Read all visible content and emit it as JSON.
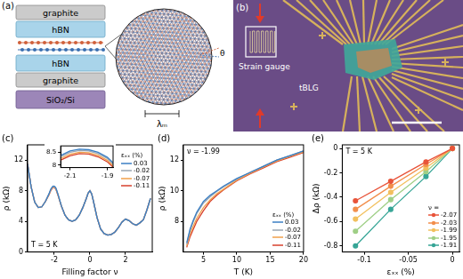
{
  "diagram_a": {
    "panel": "(a)",
    "layers": [
      "graphite",
      "hBN",
      "hBN",
      "graphite",
      "SiO₂/Si"
    ],
    "twist_angle": "θ",
    "moire_period": "λₘ"
  },
  "image_b": {
    "panel": "(b)",
    "strain_gauge": "Strain gauge",
    "device": "tBLG"
  },
  "chart_data": [
    {
      "panel": "(c)",
      "type": "line",
      "x_label": "Filling factor ν",
      "y_label": "ρ (kΩ)",
      "annotation": "T = 5 K",
      "legend": "right",
      "legend_title": "εₓₓ (%)",
      "grid": false,
      "marker": "none",
      "line_style": "solid",
      "xlim": [
        -3.5,
        3.5
      ],
      "xticks": [
        -2,
        0,
        2
      ],
      "ylim": [
        0,
        14
      ],
      "yticks": [
        0,
        4,
        8,
        12
      ],
      "x": [
        -3.5,
        -3.3,
        -3.1,
        -2.9,
        -2.7,
        -2.5,
        -2.3,
        -2.2,
        -2.1,
        -2.05,
        -2,
        -1.95,
        -1.9,
        -1.8,
        -1.6,
        -1.4,
        -1.2,
        -1,
        -0.8,
        -0.6,
        -0.4,
        -0.2,
        -0.1,
        0,
        0.1,
        0.2,
        0.4,
        0.6,
        0.8,
        1,
        1.2,
        1.4,
        1.6,
        1.8,
        2,
        2.2,
        2.4,
        2.6,
        2.8,
        3,
        3.2,
        3.4
      ],
      "series": [
        {
          "name": "0.03",
          "color": "#3b7fc4",
          "values": [
            11.5,
            8.5,
            6.5,
            5.8,
            5.9,
            6.6,
            7.6,
            8.2,
            8.55,
            8.62,
            8.6,
            8.5,
            8.3,
            7.6,
            6.0,
            4.8,
            4.2,
            4.0,
            4.2,
            4.8,
            5.8,
            7.0,
            7.7,
            8.0,
            7.6,
            6.6,
            4.5,
            3.0,
            2.4,
            2.2,
            2.3,
            2.6,
            3.2,
            3.9,
            4.3,
            4.1,
            3.7,
            3.5,
            3.8,
            4.2,
            5.5,
            7.0
          ]
        },
        {
          "name": "-0.02",
          "color": "#9aa6b2",
          "values": [
            11.5,
            8.5,
            6.5,
            5.8,
            5.9,
            6.6,
            7.55,
            8.15,
            8.5,
            8.57,
            8.55,
            8.45,
            8.25,
            7.55,
            6.0,
            4.8,
            4.2,
            4.0,
            4.2,
            4.8,
            5.8,
            7.0,
            7.7,
            8.0,
            7.6,
            6.6,
            4.5,
            3.0,
            2.4,
            2.2,
            2.3,
            2.6,
            3.2,
            3.9,
            4.3,
            4.1,
            3.7,
            3.5,
            3.8,
            4.2,
            5.5,
            7.0
          ]
        },
        {
          "name": "-0.07",
          "color": "#f0a04b",
          "values": [
            11.5,
            8.5,
            6.5,
            5.8,
            5.9,
            6.6,
            7.5,
            8.08,
            8.42,
            8.5,
            8.48,
            8.38,
            8.18,
            7.5,
            6.0,
            4.8,
            4.2,
            4.0,
            4.2,
            4.8,
            5.8,
            7.0,
            7.7,
            8.0,
            7.6,
            6.6,
            4.5,
            3.0,
            2.4,
            2.2,
            2.3,
            2.6,
            3.2,
            3.9,
            4.3,
            4.1,
            3.7,
            3.5,
            3.8,
            4.2,
            5.5,
            7.0
          ]
        },
        {
          "name": "-0.11",
          "color": "#d7402c",
          "values": [
            11.5,
            8.5,
            6.5,
            5.8,
            5.9,
            6.6,
            7.45,
            8.02,
            8.36,
            8.45,
            8.43,
            8.32,
            8.12,
            7.45,
            6.0,
            4.8,
            4.2,
            4.0,
            4.2,
            4.8,
            5.8,
            7.0,
            7.7,
            8.0,
            7.6,
            6.6,
            4.5,
            3.0,
            2.4,
            2.2,
            2.3,
            2.6,
            3.2,
            3.9,
            4.3,
            4.1,
            3.7,
            3.5,
            3.8,
            4.2,
            5.5,
            7.0
          ]
        }
      ],
      "inset": {
        "xlim": [
          -2.15,
          -1.87
        ],
        "xticks": [
          -2.1,
          -1.9
        ],
        "ylim": [
          7.9,
          8.75
        ],
        "yticks": [
          8,
          8.5
        ]
      }
    },
    {
      "panel": "(d)",
      "type": "line",
      "x_label": "T (K)",
      "y_label": "ρ (kΩ)",
      "annotation": "ν = -1.99",
      "legend": "lower right",
      "legend_title": "εₓₓ (%)",
      "grid": false,
      "marker": "none",
      "line_style": "solid",
      "xlim": [
        2,
        20
      ],
      "xticks": [
        5,
        10,
        15,
        20
      ],
      "ylim": [
        6,
        13
      ],
      "yticks": [
        8,
        10,
        12
      ],
      "x": [
        2.5,
        3,
        3.5,
        4,
        5,
        6,
        7,
        8,
        10,
        12,
        14,
        16,
        18,
        20
      ],
      "series": [
        {
          "name": "0.03",
          "color": "#3b7fc4",
          "values": [
            6.6,
            7.5,
            8.1,
            8.6,
            9.3,
            9.7,
            10.0,
            10.3,
            10.8,
            11.2,
            11.6,
            12.0,
            12.3,
            12.6
          ]
        },
        {
          "name": "-0.02",
          "color": "#9aa6b2",
          "values": [
            6.5,
            7.4,
            8.0,
            8.5,
            9.2,
            9.6,
            9.95,
            10.25,
            10.75,
            11.2,
            11.6,
            12.0,
            12.3,
            12.6
          ]
        },
        {
          "name": "-0.07",
          "color": "#f0a04b",
          "values": [
            6.4,
            7.2,
            7.7,
            8.2,
            8.9,
            9.4,
            9.8,
            10.1,
            10.7,
            11.15,
            11.55,
            11.95,
            12.25,
            12.55
          ]
        },
        {
          "name": "-0.11",
          "color": "#d7402c",
          "values": [
            6.3,
            7.0,
            7.5,
            8.0,
            8.7,
            9.3,
            9.7,
            10.05,
            10.65,
            11.1,
            11.5,
            11.9,
            12.2,
            12.5
          ]
        }
      ]
    },
    {
      "panel": "(e)",
      "type": "line",
      "x_label": "εₓₓ (%)",
      "y_label": "Δρ (kΩ)",
      "annotation": "T = 5 K",
      "legend": "lower right",
      "legend_title": "ν =",
      "grid": false,
      "marker": "circle",
      "line_style": "solid",
      "xlim": [
        -0.125,
        0.008
      ],
      "xticks": [
        -0.1,
        -0.05,
        0
      ],
      "ylim": [
        -0.85,
        0.03
      ],
      "yticks": [
        -0.8,
        -0.6,
        -0.4,
        -0.2,
        0
      ],
      "x": [
        -0.11,
        -0.07,
        -0.03,
        0
      ],
      "series": [
        {
          "name": "-2.07",
          "color": "#e8543a",
          "values": [
            -0.43,
            -0.27,
            -0.11,
            0
          ]
        },
        {
          "name": "-2.03",
          "color": "#f28e4b",
          "values": [
            -0.5,
            -0.31,
            -0.13,
            0
          ]
        },
        {
          "name": "-1.99",
          "color": "#f2c05e",
          "values": [
            -0.58,
            -0.36,
            -0.16,
            0
          ]
        },
        {
          "name": "-1.95",
          "color": "#9fcf86",
          "values": [
            -0.68,
            -0.42,
            -0.19,
            0
          ]
        },
        {
          "name": "-1.91",
          "color": "#36a596",
          "values": [
            -0.8,
            -0.5,
            -0.23,
            0
          ]
        }
      ]
    }
  ]
}
